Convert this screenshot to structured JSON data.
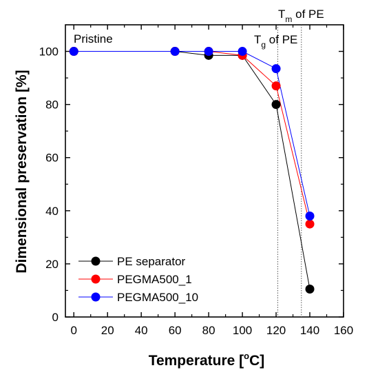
{
  "chart_data": {
    "type": "line",
    "xlabel": "Temperature [",
    "xlabel_sup": "o",
    "xlabel_tail": "C]",
    "ylabel": "Dimensional preservation [%]",
    "xlim": [
      -5,
      160
    ],
    "ylim": [
      0,
      110
    ],
    "x_ticks": [
      0,
      20,
      40,
      60,
      80,
      100,
      120,
      140,
      160
    ],
    "y_ticks": [
      0,
      20,
      40,
      60,
      80,
      100
    ],
    "x": [
      0,
      60,
      80,
      100,
      120,
      140
    ],
    "series": [
      {
        "name": "PE separator",
        "color": "#000000",
        "values": [
          100,
          100,
          98.5,
          98.5,
          80,
          10.5
        ]
      },
      {
        "name": "PEGMA500_1",
        "color": "#ff0000",
        "values": [
          100,
          100,
          100,
          98.5,
          87,
          35
        ]
      },
      {
        "name": "PEGMA500_10",
        "color": "#0000ff",
        "values": [
          100,
          100,
          100,
          100,
          93.5,
          38
        ]
      }
    ],
    "legend_position": "bottom-left",
    "grid": false,
    "annotations": {
      "pristine": "Pristine",
      "tg_main": "T",
      "tg_sub": "g",
      "tg_tail": " of PE",
      "tg_x": 121,
      "tm_main": "T",
      "tm_sub": "m",
      "tm_tail": " of PE",
      "tm_x": 135
    }
  }
}
